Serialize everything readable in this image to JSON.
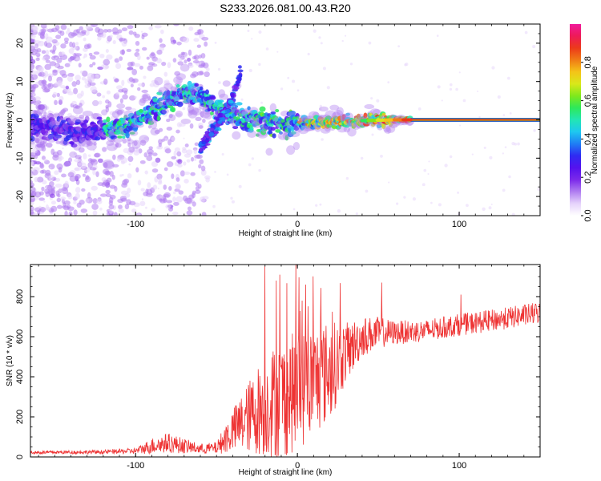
{
  "chart_data": [
    {
      "type": "heatmap",
      "title": "S233.2026.081.00.43.R20",
      "xlabel": "Height of straight line (km)",
      "ylabel": "Frequency (Hz)",
      "xlim": [
        -165,
        150
      ],
      "ylim": [
        -25,
        25
      ],
      "xticks": [
        -100,
        0,
        100
      ],
      "yticks": [
        -20,
        -10,
        0,
        10,
        20
      ],
      "colorbar": {
        "label": "Normalized spectral amplitude",
        "range": [
          0,
          1
        ],
        "ticks": [
          0.0,
          0.2,
          0.4,
          0.6,
          0.8
        ],
        "colormap": [
          "#ffffff",
          "#e6d3fb",
          "#b07ef0",
          "#7b29ea",
          "#5512ee",
          "#2f2bf2",
          "#1f7ef4",
          "#1ec8f0",
          "#22e6b4",
          "#2ee85a",
          "#7fe81c",
          "#d9e81a",
          "#f4c418",
          "#f07b16",
          "#ec3a1a",
          "#ee1a58",
          "#f01a9c"
        ]
      },
      "ridge": {
        "description_points_x": [
          -165,
          -140,
          -120,
          -110,
          -100,
          -90,
          -80,
          -70,
          -60,
          -50,
          -40,
          -30,
          -20,
          -10,
          0,
          20,
          40,
          60,
          70,
          100,
          150
        ],
        "description_points_y": [
          -1,
          -3,
          -3,
          -2,
          0,
          2,
          5,
          7,
          6,
          3,
          1,
          0,
          -1,
          -1,
          -1,
          -0.5,
          -0.2,
          0,
          0,
          0,
          0
        ],
        "secondary_branch_x": [
          -60,
          -50,
          -40,
          -35
        ],
        "secondary_branch_y": [
          -7,
          -2,
          6,
          12
        ]
      }
    },
    {
      "type": "line",
      "title": "",
      "xlabel": "Height of straight line (km)",
      "ylabel": "SNR (10 * v/v)",
      "xlim": [
        -165,
        150
      ],
      "ylim": [
        0,
        960
      ],
      "xticks": [
        -100,
        0,
        100
      ],
      "yticks": [
        0,
        200,
        400,
        600,
        800
      ],
      "color": "#ee3333",
      "trend_x": [
        -165,
        -120,
        -100,
        -90,
        -80,
        -60,
        -50,
        -40,
        -30,
        -20,
        -10,
        0,
        10,
        20,
        30,
        40,
        50,
        60,
        80,
        100,
        120,
        150
      ],
      "trend_y": [
        22,
        25,
        30,
        55,
        70,
        40,
        45,
        130,
        200,
        260,
        290,
        330,
        380,
        430,
        520,
        600,
        620,
        620,
        630,
        660,
        680,
        720
      ],
      "noise_amplitude": [
        8,
        10,
        15,
        40,
        50,
        25,
        30,
        110,
        180,
        260,
        300,
        300,
        280,
        250,
        150,
        100,
        80,
        60,
        55,
        55,
        55,
        55
      ],
      "peaks": [
        {
          "x": -20,
          "y": 950
        },
        {
          "x": -13,
          "y": 880
        },
        {
          "x": 5,
          "y": 860
        },
        {
          "x": 52,
          "y": 870
        },
        {
          "x": 101,
          "y": 810
        },
        {
          "x": 3,
          "y": 780
        }
      ]
    }
  ]
}
